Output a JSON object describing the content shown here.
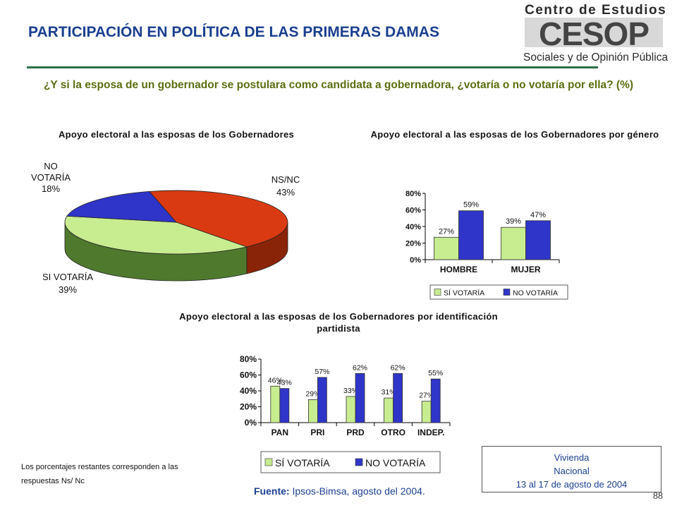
{
  "title": "PARTICIPACIÓN EN POLÍTICA DE LAS PRIMERAS DAMAS",
  "logo": {
    "line1": "Centro de Estudios",
    "acronym": "CESOP",
    "line2": "Sociales y de Opinión Pública"
  },
  "question": "¿Y si la esposa de un gobernador se postulara como candidata a gobernadora, ¿votaría o no votaría por ella? (%)",
  "colors": {
    "si": "#c8ec90",
    "no": "#2f35c8",
    "nsnc": "#e83a10",
    "accent": "#1a3f8f"
  },
  "chart_data": [
    {
      "type": "pie",
      "title": "Apoyo electoral a las esposas de los Gobernadores",
      "slices": [
        {
          "label": "NS/NC",
          "value": 43,
          "display": "43%"
        },
        {
          "label": "SI VOTARÍA",
          "value": 39,
          "display": "39%"
        },
        {
          "label": "NO VOTARÍA",
          "value": 18,
          "display": "18%"
        }
      ]
    },
    {
      "type": "bar",
      "title": "Apoyo electoral a las esposas de los Gobernadores por género",
      "categories": [
        "HOMBRE",
        "MUJER"
      ],
      "series": [
        {
          "name": "SÍ VOTARÍA",
          "values": [
            27,
            39
          ],
          "labels": [
            "27%",
            "39%"
          ]
        },
        {
          "name": "NO VOTARÍA",
          "values": [
            59,
            47
          ],
          "labels": [
            "59%",
            "47%"
          ]
        }
      ],
      "ylim": [
        0,
        80
      ],
      "yticks": [
        "0%",
        "20%",
        "40%",
        "60%",
        "80%"
      ]
    },
    {
      "type": "bar",
      "title": "Apoyo electoral a las esposas de los Gobernadores por identificación partidista",
      "categories": [
        "PAN",
        "PRI",
        "PRD",
        "OTRO",
        "INDEP."
      ],
      "series": [
        {
          "name": "SÍ VOTARÍA",
          "values": [
            46,
            29,
            33,
            31,
            27
          ],
          "labels": [
            "46%",
            "29%",
            "33%",
            "31%",
            "27%"
          ]
        },
        {
          "name": "NO VOTARÍA",
          "values": [
            43,
            57,
            62,
            62,
            55
          ],
          "labels": [
            "43%",
            "57%",
            "62%",
            "62%",
            "55%"
          ]
        }
      ],
      "ylim": [
        0,
        80
      ],
      "yticks": [
        "0%",
        "20%",
        "40%",
        "60%",
        "80%"
      ]
    }
  ],
  "note": "Los porcentajes restantes corresponden a las respuestas Ns/ Nc",
  "source": {
    "label": "Fuente:",
    "text": "Ipsos-Bimsa, agosto del 2004."
  },
  "infobox": {
    "line1": "Vivienda",
    "line2": "Nacional",
    "line3": "13 al 17 de agosto de 2004"
  },
  "page_number": "88"
}
